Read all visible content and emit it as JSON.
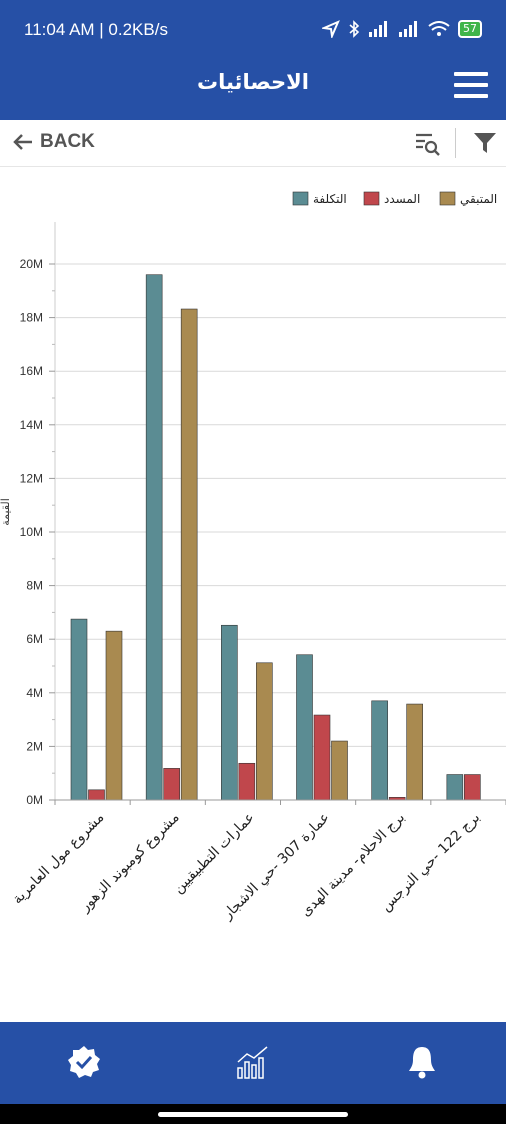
{
  "status": {
    "time": "11:04 AM | 0.2KB/s",
    "battery": "57"
  },
  "header": {
    "title": "الاحصائيات"
  },
  "toolbar": {
    "back_label": "BACK"
  },
  "colors": {
    "primary": "#2650a6",
    "cost": "#5b8c93",
    "paid": "#c0474c",
    "remaining": "#a98a50"
  },
  "chart_data": {
    "type": "bar",
    "categories": [
      "مشروع مول العامرية",
      "مشروع كومبوند الزهور",
      "عمارات التطبيقيين",
      "عمارة 307 -حي الاشجار",
      "برج الاحلام- مدينة الهدى",
      "برج 122 -حي النرجس"
    ],
    "series": [
      {
        "name": "التكلفة",
        "values": [
          6750000,
          19600000,
          6520000,
          5420000,
          3700000,
          950000
        ]
      },
      {
        "name": "المسدد",
        "values": [
          380000,
          1180000,
          1370000,
          3170000,
          100000,
          950000
        ]
      },
      {
        "name": "المتبقي",
        "values": [
          6300000,
          18320000,
          5120000,
          2200000,
          3580000,
          0
        ]
      }
    ],
    "ylabel": "القيمة",
    "ylim": [
      0,
      20000000
    ],
    "yticks": [
      "0M",
      "2M",
      "4M",
      "6M",
      "8M",
      "10M",
      "12M",
      "14M",
      "16M",
      "18M",
      "20M"
    ],
    "grid": true,
    "legend_position": "top-right"
  }
}
